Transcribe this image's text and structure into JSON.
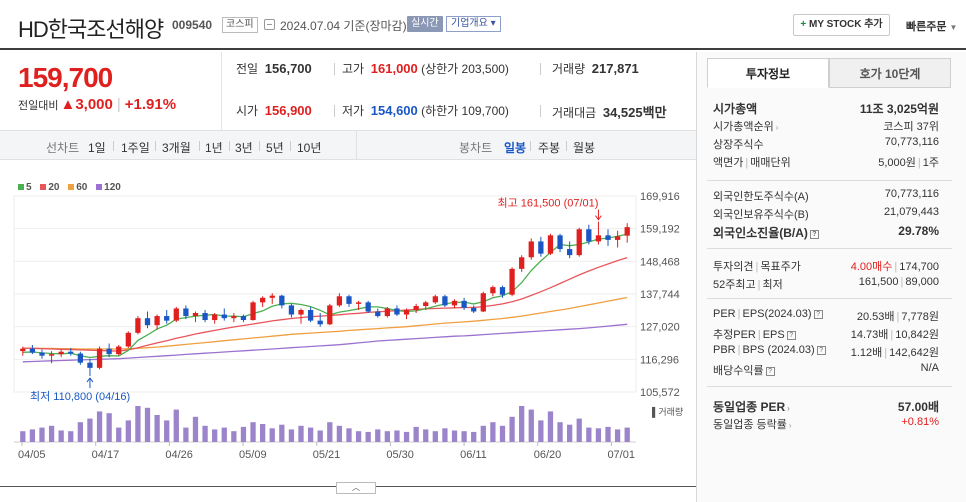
{
  "header": {
    "name": "HD한국조선해양",
    "code": "009540",
    "market": "코스피",
    "date": "2024.07.04 기준(장마감)",
    "realtime": "실시간",
    "company_info": "기업개요",
    "mystock": "MY STOCK 추가",
    "quick_order": "빠른주문"
  },
  "price": {
    "current": "159,700",
    "change_label": "전일대비",
    "change": "▲3,000",
    "change_pct": "+1.91%"
  },
  "quote": {
    "prev_label": "전일",
    "prev": "156,700",
    "high_label": "고가",
    "high": "161,000",
    "upper_limit": "(상한가 203,500)",
    "volume_label": "거래량",
    "volume": "217,871",
    "open_label": "시가",
    "open": "156,900",
    "low_label": "저가",
    "low": "154,600",
    "lower_limit": "(하한가 109,700)",
    "amount_label": "거래대금",
    "amount": "34,525",
    "amount_unit": "백만"
  },
  "period": {
    "label": "선차트",
    "items": [
      "1일",
      "1주일",
      "3개월",
      "1년",
      "3년",
      "5년",
      "10년"
    ],
    "candle_label": "봉차트",
    "candle_items": [
      "일봉",
      "주봉",
      "월봉"
    ],
    "candle_active": 0
  },
  "colors": {
    "up": "#e0201f",
    "down": "#1a57c4",
    "ma5": "#4caf50",
    "ma20": "#e8565b",
    "ma60": "#f0a040",
    "ma120": "#9b72cf",
    "volume": "#9b84c9"
  },
  "chart_data": {
    "type": "candlestick",
    "legend": [
      "5",
      "20",
      "60",
      "120"
    ],
    "y_ticks": [
      169916,
      159192,
      148468,
      137744,
      127020,
      116296,
      105572
    ],
    "ylim": [
      105572,
      169916
    ],
    "x_ticks": [
      "04/05",
      "04/17",
      "04/26",
      "05/09",
      "05/21",
      "05/30",
      "06/11",
      "06/20",
      "07/01"
    ],
    "max_label": "최고 161,500 (07/01)",
    "min_label": "최저 110,800 (04/16)",
    "volume_label": "거래량",
    "candles": [
      [
        119000,
        120500,
        117500,
        119800
      ],
      [
        119800,
        121000,
        118000,
        118500
      ],
      [
        118500,
        119500,
        116500,
        117500
      ],
      [
        117500,
        119000,
        115000,
        118000
      ],
      [
        118000,
        119500,
        117000,
        118800
      ],
      [
        118800,
        120000,
        117500,
        118200
      ],
      [
        118200,
        118800,
        114500,
        115200
      ],
      [
        115200,
        116500,
        110800,
        113500
      ],
      [
        113500,
        120500,
        113000,
        119800
      ],
      [
        119800,
        121500,
        117000,
        118000
      ],
      [
        118000,
        121000,
        117500,
        120500
      ],
      [
        120500,
        125500,
        120000,
        125000
      ],
      [
        125000,
        130500,
        124500,
        129800
      ],
      [
        129800,
        132000,
        126500,
        127500
      ],
      [
        127500,
        131000,
        126000,
        130500
      ],
      [
        130500,
        132500,
        128000,
        129000
      ],
      [
        129000,
        133500,
        128500,
        133000
      ],
      [
        133000,
        134000,
        129500,
        130500
      ],
      [
        130500,
        132000,
        128500,
        131500
      ],
      [
        131500,
        132500,
        128500,
        129200
      ],
      [
        129200,
        131500,
        128000,
        131000
      ],
      [
        131000,
        133000,
        129000,
        129800
      ],
      [
        129800,
        131500,
        128500,
        130500
      ],
      [
        130500,
        131000,
        128500,
        129200
      ],
      [
        129200,
        135500,
        129000,
        135000
      ],
      [
        135000,
        137000,
        133500,
        136500
      ],
      [
        136500,
        138000,
        134500,
        137200
      ],
      [
        137200,
        137500,
        133000,
        134000
      ],
      [
        134000,
        134500,
        130000,
        131000
      ],
      [
        131000,
        133000,
        128000,
        132500
      ],
      [
        132500,
        133500,
        128500,
        129000
      ],
      [
        129000,
        131500,
        127000,
        127800
      ],
      [
        127800,
        134500,
        127500,
        134000
      ],
      [
        134000,
        138000,
        133500,
        137000
      ],
      [
        137000,
        137500,
        133500,
        134500
      ],
      [
        134500,
        135500,
        132500,
        135000
      ],
      [
        135000,
        135500,
        131500,
        132000
      ],
      [
        132000,
        133000,
        130000,
        130500
      ],
      [
        130500,
        133500,
        130000,
        133000
      ],
      [
        133000,
        134000,
        130500,
        131000
      ],
      [
        131000,
        133000,
        129500,
        132500
      ],
      [
        132500,
        134500,
        131500,
        133800
      ],
      [
        133800,
        135500,
        132500,
        135000
      ],
      [
        135000,
        137500,
        134500,
        137000
      ],
      [
        137000,
        137500,
        133500,
        134000
      ],
      [
        134000,
        136000,
        133000,
        135500
      ],
      [
        135500,
        136500,
        132500,
        133200
      ],
      [
        133200,
        134000,
        131500,
        132000
      ],
      [
        132000,
        138500,
        131800,
        138000
      ],
      [
        138000,
        140500,
        137000,
        140000
      ],
      [
        140000,
        140500,
        136500,
        137500
      ],
      [
        137500,
        146500,
        137000,
        146000
      ],
      [
        146000,
        150500,
        145000,
        149800
      ],
      [
        149800,
        156000,
        149000,
        155000
      ],
      [
        155000,
        156500,
        150000,
        151000
      ],
      [
        151000,
        157500,
        150500,
        157000
      ],
      [
        157000,
        157500,
        151500,
        152500
      ],
      [
        152500,
        155000,
        149500,
        150500
      ],
      [
        150500,
        159500,
        150000,
        159000
      ],
      [
        159000,
        160500,
        154000,
        155000
      ],
      [
        155000,
        161500,
        154000,
        157000
      ],
      [
        157000,
        159000,
        153500,
        155500
      ],
      [
        155500,
        158500,
        153000,
        156700
      ],
      [
        156900,
        161000,
        154600,
        159700
      ]
    ],
    "ma5": [
      118600,
      118700,
      118400,
      118200,
      118100,
      118300,
      117500,
      116900,
      117300,
      117500,
      117400,
      119200,
      122500,
      124300,
      126300,
      127500,
      129500,
      130000,
      130500,
      130800,
      131000,
      130500,
      130500,
      130300,
      131300,
      132200,
      133700,
      134500,
      134700,
      134300,
      133600,
      132400,
      130900,
      131800,
      132300,
      132900,
      133500,
      133500,
      133000,
      132300,
      132000,
      132200,
      132900,
      133700,
      134500,
      135000,
      135100,
      134500,
      135200,
      136500,
      137200,
      138500,
      141500,
      145500,
      148600,
      151400,
      154000,
      153600,
      154000,
      154800,
      155800,
      156100,
      156700,
      157400
    ],
    "ma20": [
      120000,
      119900,
      119800,
      119700,
      119600,
      119500,
      119400,
      119300,
      119200,
      119100,
      119000,
      119400,
      120100,
      120900,
      121700,
      122400,
      123200,
      123900,
      124600,
      125200,
      125800,
      126400,
      126900,
      127400,
      127900,
      128400,
      128900,
      129300,
      129700,
      130000,
      130300,
      130500,
      130700,
      130900,
      131200,
      131400,
      131700,
      131900,
      132100,
      132300,
      132500,
      132700,
      132900,
      133000,
      133100,
      133200,
      133300,
      133300,
      133600,
      134000,
      134500,
      135200,
      136100,
      137300,
      138500,
      139800,
      141200,
      142600,
      144000,
      145300,
      146500,
      147600,
      148700,
      149700
    ],
    "ma60": [
      120000,
      120000,
      119900,
      119900,
      119800,
      119800,
      119700,
      119700,
      119700,
      119700,
      119700,
      119800,
      119900,
      120100,
      120300,
      120600,
      120900,
      121200,
      121500,
      121800,
      122100,
      122400,
      122700,
      123000,
      123300,
      123600,
      123900,
      124200,
      124500,
      124700,
      124900,
      125100,
      125300,
      125500,
      125800,
      126000,
      126200,
      126400,
      126600,
      126800,
      127000,
      127300,
      127600,
      127900,
      128200,
      128400,
      128600,
      128800,
      129100,
      129400,
      129700,
      130100,
      130500,
      131000,
      131500,
      132000,
      132500,
      133000,
      133600,
      134200,
      134800,
      135400,
      136000,
      136600
    ],
    "ma120": [
      115500,
      115600,
      115700,
      115800,
      115900,
      116000,
      116100,
      116200,
      116300,
      116400,
      116500,
      116700,
      116900,
      117100,
      117300,
      117500,
      117700,
      117900,
      118100,
      118300,
      118500,
      118700,
      118900,
      119100,
      119300,
      119500,
      119700,
      119900,
      120100,
      120300,
      120500,
      120700,
      120900,
      121100,
      121400,
      121700,
      122000,
      122300,
      122500,
      122700,
      122900,
      123100,
      123300,
      123500,
      123700,
      123900,
      124000,
      124200,
      124400,
      124600,
      124800,
      125000,
      125200,
      125400,
      125600,
      125800,
      126000,
      126200,
      126400,
      126600,
      126900,
      127200,
      127500,
      127800
    ],
    "volume": [
      30,
      35,
      40,
      45,
      32,
      30,
      55,
      65,
      85,
      80,
      40,
      60,
      100,
      95,
      75,
      60,
      90,
      40,
      70,
      45,
      35,
      40,
      30,
      42,
      55,
      50,
      38,
      48,
      35,
      45,
      40,
      32,
      55,
      45,
      38,
      30,
      28,
      35,
      30,
      32,
      28,
      42,
      35,
      30,
      38,
      32,
      30,
      28,
      45,
      55,
      45,
      70,
      100,
      90,
      60,
      85,
      55,
      48,
      65,
      40,
      38,
      42,
      35,
      40
    ]
  },
  "right_panel": {
    "tabs": [
      "투자정보",
      "호가 10단계"
    ],
    "market_cap_label": "시가총액",
    "market_cap": "11조 3,025억원",
    "rank_label": "시가총액순위",
    "rank": "코스피 37위",
    "shares_label": "상장주식수",
    "shares": "70,773,116",
    "par_label": "액면가",
    "trade_unit_label": "매매단위",
    "par": "5,000원",
    "trade_unit": "1주",
    "foreign_limit_label": "외국인한도주식수(A)",
    "foreign_limit": "70,773,116",
    "foreign_hold_label": "외국인보유주식수(B)",
    "foreign_hold": "21,079,443",
    "foreign_ratio_label": "외국인소진율(B/A)",
    "foreign_ratio": "29.78%",
    "opinion_label": "투자의견",
    "target_label": "목표주가",
    "opinion": "4.00매수",
    "target": "174,700",
    "week52_label": "52주최고",
    "week52_low_label": "최저",
    "week52_high": "161,500",
    "week52_low": "89,000",
    "per_label": "PER",
    "eps_label": "EPS(2024.03)",
    "per": "20.53배",
    "eps": "7,778원",
    "est_per_label": "추정PER",
    "est_eps_label": "EPS",
    "est_per": "14.73배",
    "est_eps": "10,842원",
    "pbr_label": "PBR",
    "bps_label": "BPS (2024.03)",
    "pbr": "1.12배",
    "bps": "142,642원",
    "dividend_label": "배당수익률",
    "dividend": "N/A",
    "industry_per_label": "동일업종 PER",
    "industry_per": "57.00배",
    "industry_change_label": "동일업종 등락률",
    "industry_change": "+0.81%"
  }
}
